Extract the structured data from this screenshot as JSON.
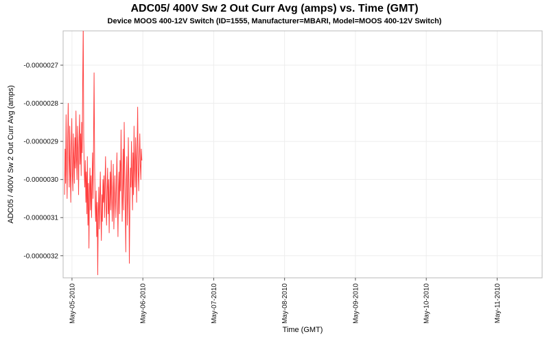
{
  "title": "ADC05/ 400V Sw 2 Out Curr Avg (amps) vs. Time (GMT)",
  "subtitle": "Device MOOS 400-12V Switch (ID=1555, Manufacturer=MBARI, Model=MOOS 400-12V Switch)",
  "chart_data": {
    "type": "line",
    "title": "ADC05/ 400V Sw 2 Out Curr Avg (amps) vs. Time (GMT)",
    "subtitle": "Device MOOS 400-12V Switch (ID=1555, Manufacturer=MBARI, Model=MOOS 400-12V Switch)",
    "xlabel": "Time (GMT)",
    "ylabel": "ADC05 / 400V Sw 2 Out Curr Avg (amps)",
    "legend": "none",
    "grid": true,
    "line_color": "#ff4040",
    "x_tick_labels": [
      "May-05-2010",
      "May-06-2010",
      "May-07-2010",
      "May-08-2010",
      "May-09-2010",
      "May-10-2010",
      "May-11-2010"
    ],
    "x_tick_positions_days": [
      0,
      1,
      2,
      3,
      4,
      5,
      6
    ],
    "xlim_days": [
      -0.125,
      6.635
    ],
    "y_tick_labels": [
      "-0.0000027",
      "-0.0000028",
      "-0.0000029",
      "-0.0000030",
      "-0.0000031",
      "-0.0000032"
    ],
    "y_tick_values": [
      -2.7e-06,
      -2.8e-06,
      -2.9e-06,
      -3e-06,
      -3.1e-06,
      -3.2e-06
    ],
    "ylim": [
      -3.258e-06,
      -2.61e-06
    ],
    "series": [
      {
        "name": "ADC05/ 400V Sw 2 Out Curr Avg (amps)",
        "t_start_days": -0.105,
        "t_step_days": 0.00732,
        "y_scale": 1e-07,
        "values": [
          -30.4,
          -29.2,
          -30.1,
          -28.3,
          -29.6,
          -30.5,
          -29.0,
          -28.0,
          -29.3,
          -30.2,
          -28.6,
          -29.8,
          -30.6,
          -29.1,
          -28.4,
          -29.9,
          -30.3,
          -28.8,
          -29.5,
          -30.1,
          -28.9,
          -29.7,
          -28.2,
          -29.4,
          -30.0,
          -28.6,
          -29.2,
          -30.4,
          -29.0,
          -28.3,
          -29.6,
          -28.8,
          -29.9,
          -28.5,
          -29.3,
          -27.5,
          -25.9,
          -28.9,
          -29.8,
          -30.2,
          -29.5,
          -30.6,
          -29.8,
          -30.9,
          -29.4,
          -31.2,
          -30.1,
          -31.8,
          -30.4,
          -29.7,
          -30.8,
          -29.9,
          -31.0,
          -30.2,
          -29.3,
          -30.5,
          -28.9,
          -27.2,
          -29.6,
          -30.7,
          -31.1,
          -30.3,
          -31.5,
          -30.6,
          -32.5,
          -31.0,
          -30.2,
          -31.3,
          -30.5,
          -29.8,
          -30.9,
          -31.6,
          -30.4,
          -31.1,
          -30.0,
          -30.6,
          -29.9,
          -31.0,
          -30.1,
          -29.4,
          -30.7,
          -31.2,
          -30.3,
          -29.7,
          -30.9,
          -30.0,
          -31.4,
          -30.5,
          -29.8,
          -30.8,
          -29.5,
          -30.4,
          -31.1,
          -30.2,
          -29.6,
          -31.3,
          -30.7,
          -29.9,
          -30.5,
          -31.0,
          -30.1,
          -29.3,
          -30.6,
          -31.5,
          -30.2,
          -29.8,
          -30.9,
          -29.5,
          -30.3,
          -28.7,
          -29.9,
          -31.1,
          -30.4,
          -29.2,
          -30.8,
          -28.5,
          -29.6,
          -30.7,
          -31.9,
          -30.0,
          -29.4,
          -31.2,
          -30.5,
          -28.9,
          -30.1,
          -32.2,
          -30.6,
          -29.7,
          -30.2,
          -29.0,
          -29.9,
          -30.8,
          -29.3,
          -30.4,
          -28.6,
          -29.7,
          -30.2,
          -28.9,
          -29.5,
          -30.6,
          -29.1,
          -28.1,
          -29.8,
          -30.3,
          -29.4,
          -28.8,
          -29.6,
          -30.0,
          -29.2,
          -29.5
        ]
      }
    ]
  }
}
